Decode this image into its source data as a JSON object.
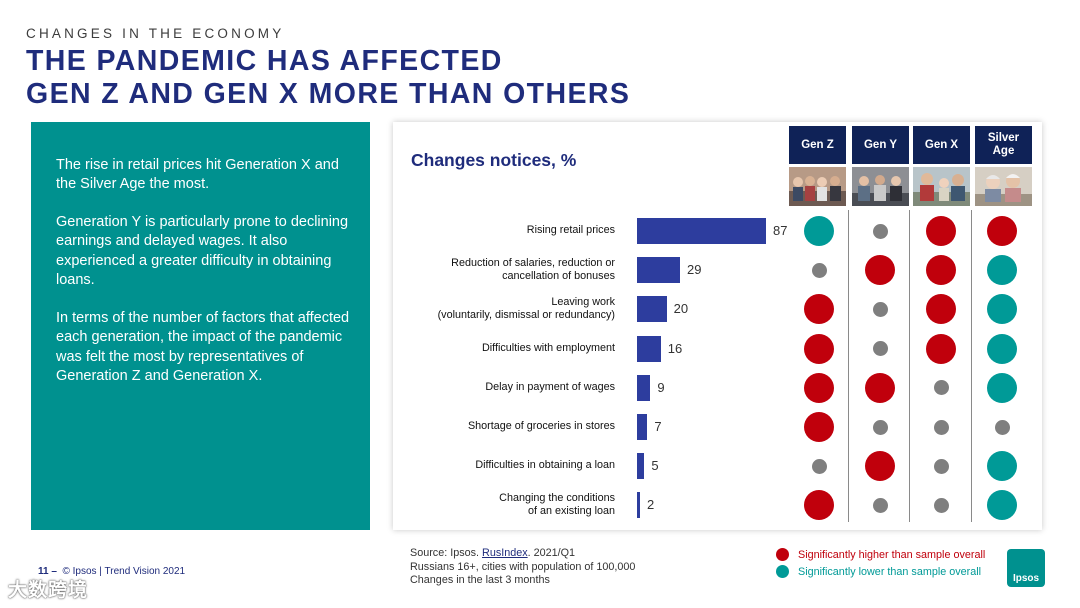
{
  "header": {
    "kicker": "CHANGES IN THE ECONOMY",
    "title_line1": "THE PANDEMIC HAS AFFECTED",
    "title_line2": "GEN Z AND GEN X MORE THAN OTHERS"
  },
  "sidebar": {
    "p1": "The rise in retail prices hit Generation X and the Silver Age the most.",
    "p2": "Generation Y is particularly prone to declining earnings and delayed wages. It also experienced a greater difficulty in obtaining loans.",
    "p3": "In terms of the number of factors that affected each generation, the impact of the pandemic was felt the most by representatives of Generation Z and Generation X."
  },
  "colors": {
    "higher": "#c0000c",
    "lower": "#009a97",
    "neutral": "#7f7f7f",
    "bar": "#2d3d9e",
    "navy": "#1f2c7c"
  },
  "chart_data": {
    "type": "bar",
    "title": "Changes notices, %",
    "categories": [
      "Rising retail prices",
      "Reduction of salaries, reduction or cancellation of bonuses",
      "Leaving work (voluntarily, dismissal or redundancy)",
      "Difficulties with employment",
      "Delay in payment of wages",
      "Shortage of groceries in stores",
      "Difficulties in obtaining a loan",
      "Changing the conditions of an existing loan"
    ],
    "label_lines": [
      [
        "Rising retail prices"
      ],
      [
        "Reduction of salaries, reduction or",
        "cancellation of bonuses"
      ],
      [
        "Leaving work",
        "(voluntarily, dismissal or redundancy)"
      ],
      [
        "Difficulties with employment"
      ],
      [
        "Delay in payment of wages"
      ],
      [
        "Shortage of groceries in stores"
      ],
      [
        "Difficulties in obtaining a loan"
      ],
      [
        "Changing the conditions",
        "of an existing loan"
      ]
    ],
    "values": [
      87,
      29,
      20,
      16,
      9,
      7,
      5,
      2
    ],
    "xlim": [
      0,
      87
    ],
    "generations": [
      "Gen Z",
      "Gen Y",
      "Gen X",
      "Silver Age"
    ],
    "significance": [
      [
        "lower",
        "neutral",
        "higher",
        "higher"
      ],
      [
        "neutral",
        "higher",
        "higher",
        "lower"
      ],
      [
        "higher",
        "neutral",
        "higher",
        "lower"
      ],
      [
        "higher",
        "neutral",
        "higher",
        "lower"
      ],
      [
        "higher",
        "higher",
        "neutral",
        "lower"
      ],
      [
        "higher",
        "neutral",
        "neutral",
        "neutral"
      ],
      [
        "neutral",
        "higher",
        "neutral",
        "lower"
      ],
      [
        "higher",
        "neutral",
        "neutral",
        "lower"
      ]
    ]
  },
  "gen_headers": {
    "z": "Gen Z",
    "y": "Gen Y",
    "x": "Gen X",
    "silver_line1": "Silver",
    "silver_line2": "Age"
  },
  "footer": {
    "source_prefix": "Source: Ipsos. ",
    "source_link": "RusIndex",
    "source_suffix": ". 2021/Q1",
    "line2": "Russians 16+, cities with population of 100,000",
    "line3": "Changes in the last 3 months",
    "legend_higher": "Significantly higher than sample overall",
    "legend_lower": "Significantly lower than sample overall",
    "page_number": "11",
    "page_dash": " –",
    "copyright": "© Ipsos | Trend Vision 2021",
    "watermark": "大数跨境",
    "logo_text": "Ipsos"
  }
}
